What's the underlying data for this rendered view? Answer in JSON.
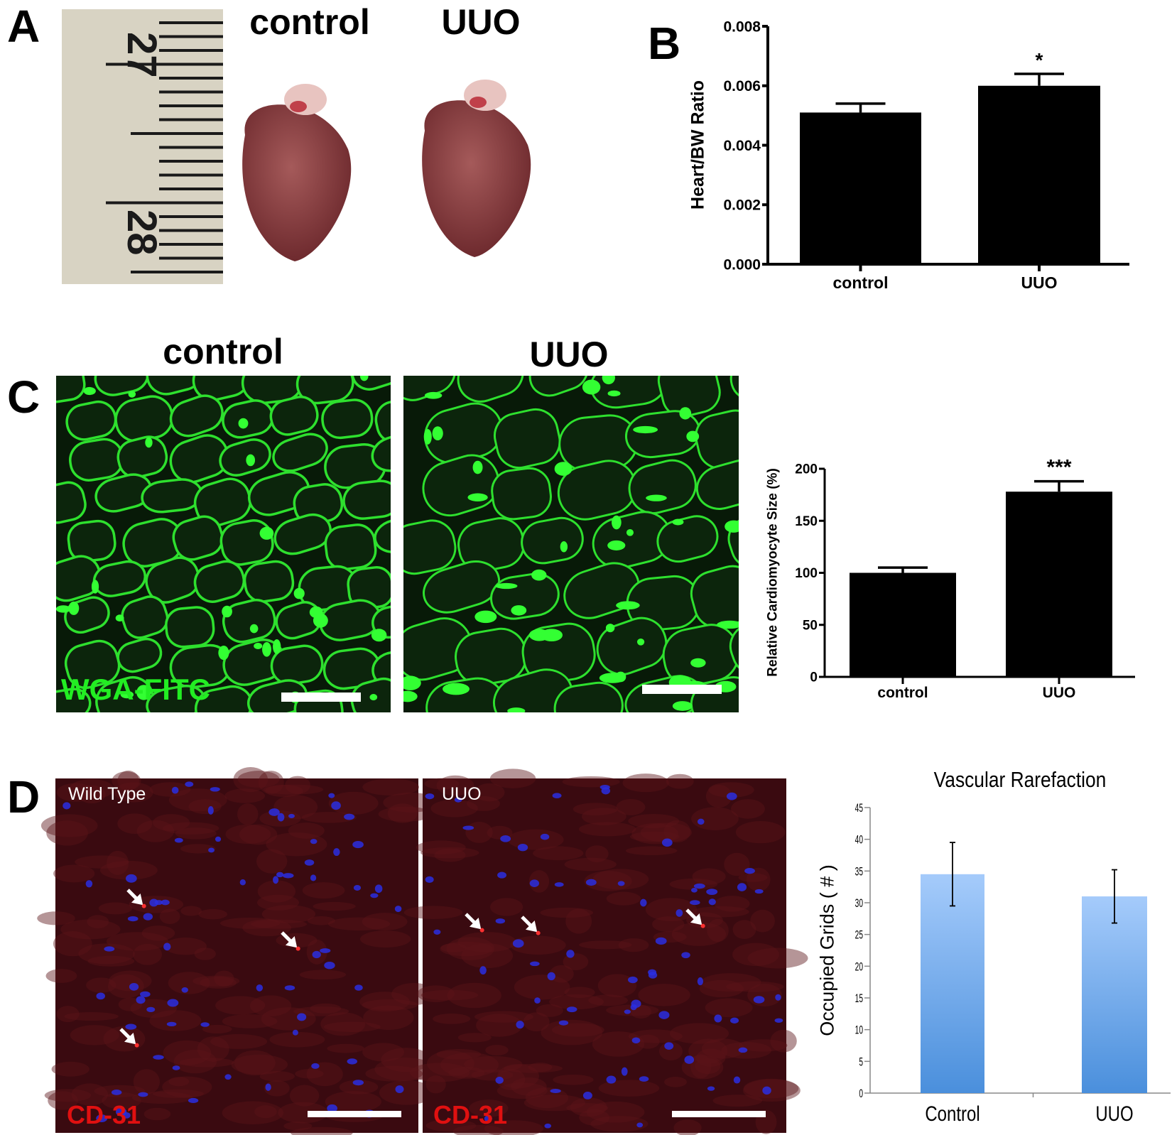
{
  "panels": {
    "A": {
      "label": "A",
      "control_label": "control",
      "uuo_label": "UUO",
      "ruler_numbers": [
        "27",
        "28"
      ]
    },
    "B": {
      "label": "B"
    },
    "C": {
      "label": "C",
      "control_label": "control",
      "uuo_label": "UUO",
      "stain_label": "WGA-FITC",
      "stain_color": "#22ee22"
    },
    "D": {
      "label": "D",
      "left_image_label": "Wild Type",
      "right_image_label": "UUO",
      "stain_label": "CD-31",
      "stain_color": "#e01010"
    }
  },
  "chart_data": [
    {
      "id": "B",
      "type": "bar",
      "title": "",
      "xlabel": "",
      "ylabel": "Heart/BW Ratio",
      "categories": [
        "control",
        "UUO"
      ],
      "values": [
        0.0051,
        0.006
      ],
      "errors": [
        0.0003,
        0.0004
      ],
      "annotations": [
        "",
        "*"
      ],
      "ylim": [
        0,
        0.008
      ],
      "yticks": [
        "0.000",
        "0.002",
        "0.004",
        "0.006",
        "0.008"
      ],
      "bar_color": "#000000",
      "grid": false
    },
    {
      "id": "C",
      "type": "bar",
      "title": "",
      "xlabel": "",
      "ylabel": "Relative Cardiomyocyte Size (%)",
      "categories": [
        "control",
        "UUO"
      ],
      "values": [
        100,
        178
      ],
      "errors": [
        5,
        10
      ],
      "annotations": [
        "",
        "***"
      ],
      "ylim": [
        0,
        200
      ],
      "yticks": [
        "0",
        "50",
        "100",
        "150",
        "200"
      ],
      "bar_color": "#000000",
      "grid": false
    },
    {
      "id": "D",
      "type": "bar",
      "title": "Vascular Rarefaction",
      "xlabel": "",
      "ylabel": "Occupied Grids ( # )",
      "categories": [
        "Control",
        "UUO"
      ],
      "values": [
        34.5,
        31
      ],
      "errors": [
        5,
        4.2
      ],
      "annotations": [
        "",
        ""
      ],
      "ylim": [
        0,
        45
      ],
      "yticks": [
        "0",
        "5",
        "10",
        "15",
        "20",
        "25",
        "30",
        "35",
        "40",
        "45"
      ],
      "bar_color": "#5b9be0",
      "grid": false
    }
  ]
}
